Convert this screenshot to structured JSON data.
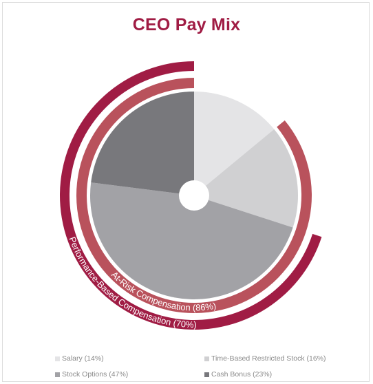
{
  "chart_data": {
    "type": "pie",
    "title": "CEO Pay Mix",
    "slices": [
      {
        "name": "Salary",
        "value": 14,
        "label": "Salary (14%)",
        "color": "#e4e4e6"
      },
      {
        "name": "Time-Based Restricted Stock",
        "value": 16,
        "label": "Time-Based Restricted Stock (16%)",
        "color": "#d0d0d2"
      },
      {
        "name": "Stock Options",
        "value": 47,
        "label": "Stock Options (47%)",
        "color": "#a2a2a6"
      },
      {
        "name": "Cash Bonus",
        "value": 23,
        "label": "Cash Bonus (23%)",
        "color": "#78787c"
      }
    ],
    "rings": [
      {
        "name": "At-Risk Compensation",
        "value": 86,
        "label": "At-Risk Compensation (86%)",
        "color": "#b9525c"
      },
      {
        "name": "Performance-Based Compensation",
        "value": 70,
        "label": "Performance-Based Compensation (70%)",
        "color": "#a01c44"
      }
    ],
    "legend_position": "bottom"
  }
}
